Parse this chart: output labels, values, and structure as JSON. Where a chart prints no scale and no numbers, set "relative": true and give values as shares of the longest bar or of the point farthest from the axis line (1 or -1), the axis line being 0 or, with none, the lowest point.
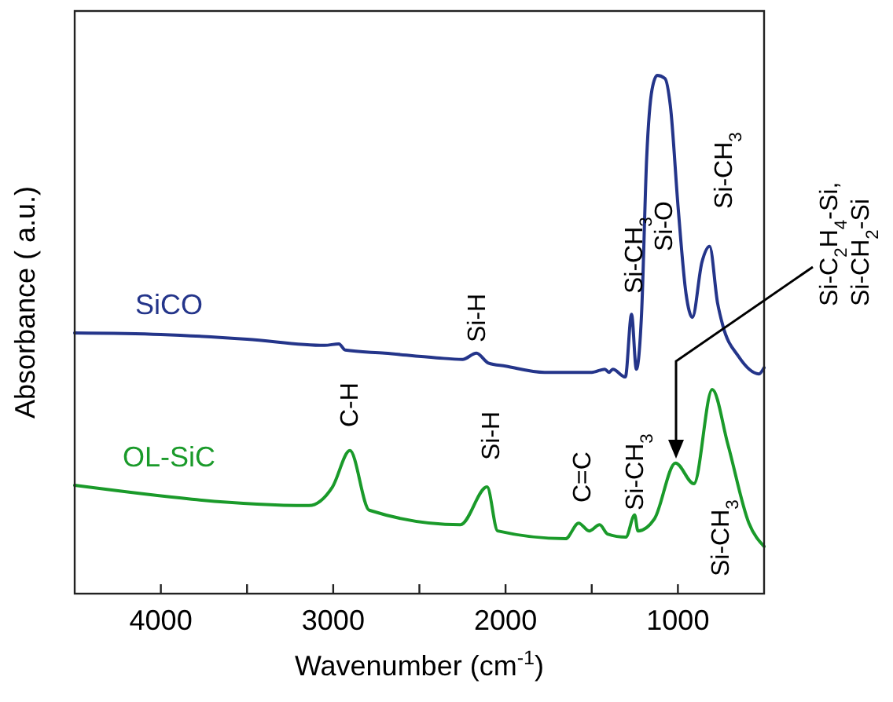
{
  "chart_data": {
    "type": "line",
    "relative": true,
    "xlabel": "Wavenumber  (cm$^{-1}$)",
    "ylabel": "Absorbance ( a.u.)",
    "xlim": [
      4500,
      500
    ],
    "xticks": [
      4000,
      {
        "value": 3500,
        "label": null
      },
      3000,
      {
        "value": 2500,
        "label": null
      },
      2000,
      {
        "value": 1500,
        "label": null
      },
      1000
    ],
    "legend": false,
    "grid": false,
    "marker": "none",
    "line_style": "solid",
    "series": [
      {
        "name": "SiCO",
        "color": "#24358a",
        "x": [
          4500,
          4000,
          3500,
          3050,
          2967,
          2930,
          2700,
          2400,
          2250,
          2169,
          2100,
          2000,
          1773,
          1500,
          1424,
          1400,
          1378,
          1305,
          1269,
          1241,
          1211,
          1181,
          1150,
          1120,
          1075,
          1044,
          998,
          953,
          916,
          861,
          816,
          770,
          740,
          649,
          530,
          500
        ],
        "values": [
          0.503,
          0.5,
          0.491,
          0.479,
          0.482,
          0.47,
          0.464,
          0.455,
          0.452,
          0.464,
          0.445,
          0.439,
          0.427,
          0.427,
          0.433,
          0.427,
          0.433,
          0.418,
          0.539,
          0.433,
          0.539,
          0.842,
          0.973,
          1.0,
          0.994,
          0.942,
          0.742,
          0.579,
          0.533,
          0.639,
          0.67,
          0.561,
          0.518,
          0.458,
          0.424,
          0.436
        ]
      },
      {
        "name": "OL-SiC",
        "color": "#1a9a2a",
        "x": [
          4500,
          3141,
          3004,
          2903,
          2791,
          2262,
          2107,
          2046,
          1652,
          1576,
          1515,
          1454,
          1408,
          1302,
          1251,
          1232,
          1135,
          1014,
          907,
          801,
          710,
          588,
          500
        ],
        "values": [
          0.209,
          0.17,
          0.206,
          0.276,
          0.161,
          0.133,
          0.206,
          0.121,
          0.106,
          0.136,
          0.121,
          0.133,
          0.115,
          0.109,
          0.152,
          0.121,
          0.145,
          0.252,
          0.212,
          0.394,
          0.288,
          0.136,
          0.091
        ]
      }
    ],
    "annotations": [
      "Si-H",
      "Si-CH$_{3}$",
      "Si-O",
      "Si-CH$_{3}$",
      "C-H",
      "Si-H",
      "C=C",
      "Si-CH$_{3}$",
      "Si-CH$_{3}$",
      "Si-C$_{2}$H$_{4}$-Si,\nSi-CH$_{2}$-Si"
    ]
  }
}
